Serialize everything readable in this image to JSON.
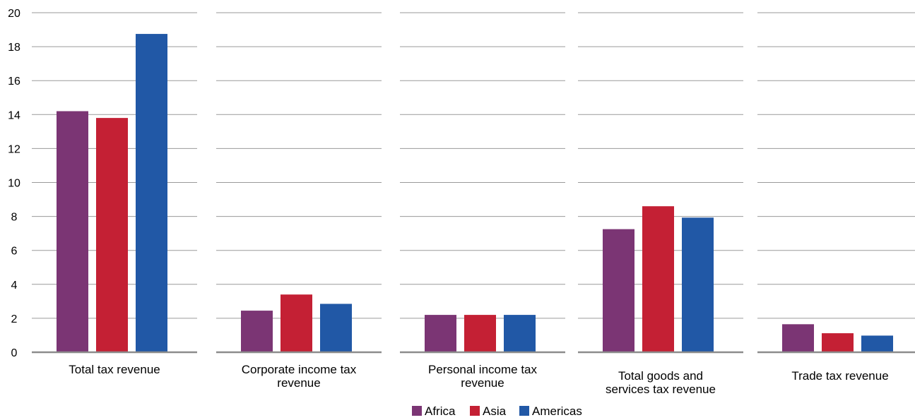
{
  "chart_data": {
    "type": "bar",
    "title": "",
    "xlabel": "",
    "ylabel": "",
    "ylim": [
      0,
      20
    ],
    "yticks": [
      0,
      2,
      4,
      6,
      8,
      10,
      12,
      14,
      16,
      18,
      20
    ],
    "grid": true,
    "legend_position": "bottom",
    "categories": [
      "Total tax revenue",
      "Corporate income tax revenue",
      "Personal income tax revenue",
      "Total goods and services tax revenue",
      "Trade tax revenue"
    ],
    "category_label_lines": [
      [
        "Total tax revenue"
      ],
      [
        "Corporate income tax",
        "revenue"
      ],
      [
        "Personal income tax",
        "revenue"
      ],
      [
        "Total goods and",
        "services tax revenue"
      ],
      [
        "Trade tax revenue"
      ]
    ],
    "series": [
      {
        "name": "Africa",
        "color": "#7b3574",
        "values": [
          14.2,
          2.45,
          2.2,
          7.25,
          1.65
        ]
      },
      {
        "name": "Asia",
        "color": "#c42034",
        "values": [
          13.8,
          3.4,
          2.2,
          8.6,
          1.12
        ]
      },
      {
        "name": "Americas",
        "color": "#2158a6",
        "values": [
          18.75,
          2.85,
          2.2,
          7.93,
          0.98
        ]
      }
    ]
  }
}
